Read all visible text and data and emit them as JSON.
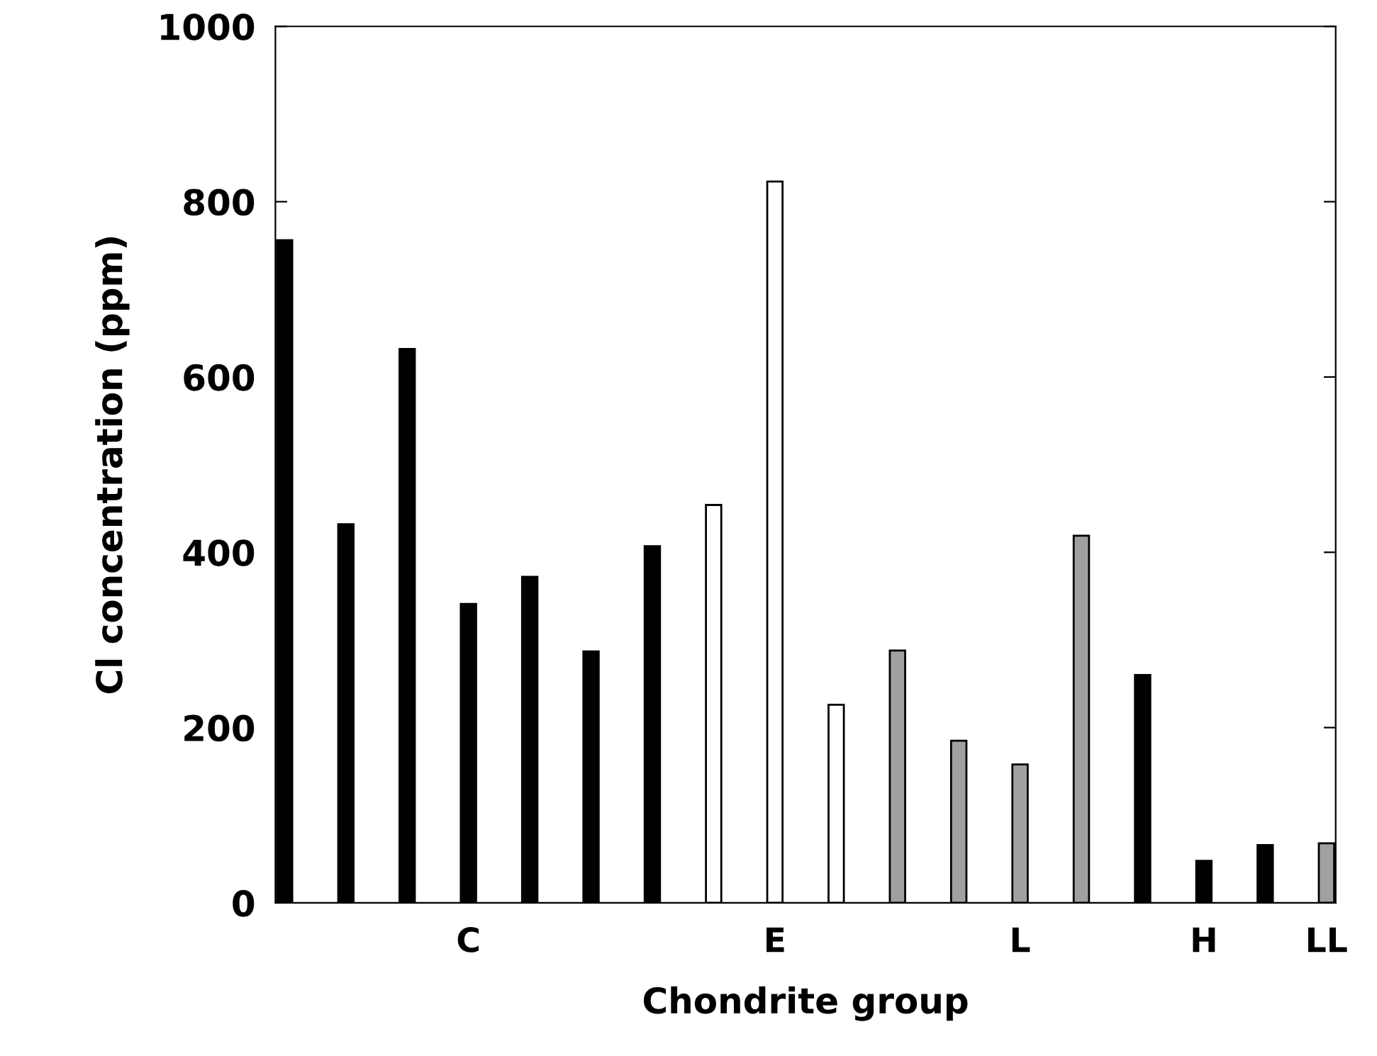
{
  "chart_data": {
    "type": "bar",
    "xlabel": "Chondrite group",
    "ylabel": "Cl concentration (ppm)",
    "categories": [
      null,
      null,
      null,
      "C",
      null,
      null,
      null,
      null,
      "E",
      null,
      null,
      null,
      "L",
      null,
      null,
      "H",
      null,
      "LL"
    ],
    "values": [
      756,
      432,
      632,
      341,
      372,
      287,
      407,
      454,
      823,
      226,
      288,
      185,
      158,
      419,
      260,
      48,
      66,
      68
    ],
    "colors": [
      "#000000",
      "#000000",
      "#000000",
      "#000000",
      "#000000",
      "#000000",
      "#000000",
      "#ffffff",
      "#ffffff",
      "#ffffff",
      "#a0a0a0",
      "#a0a0a0",
      "#a0a0a0",
      "#a0a0a0",
      "#000000",
      "#000000",
      "#000000",
      "#a0a0a0"
    ],
    "ylim": [
      0,
      1000
    ],
    "yticks": [
      0,
      200,
      400,
      600,
      800,
      1000
    ],
    "grid": false,
    "legend": false
  }
}
